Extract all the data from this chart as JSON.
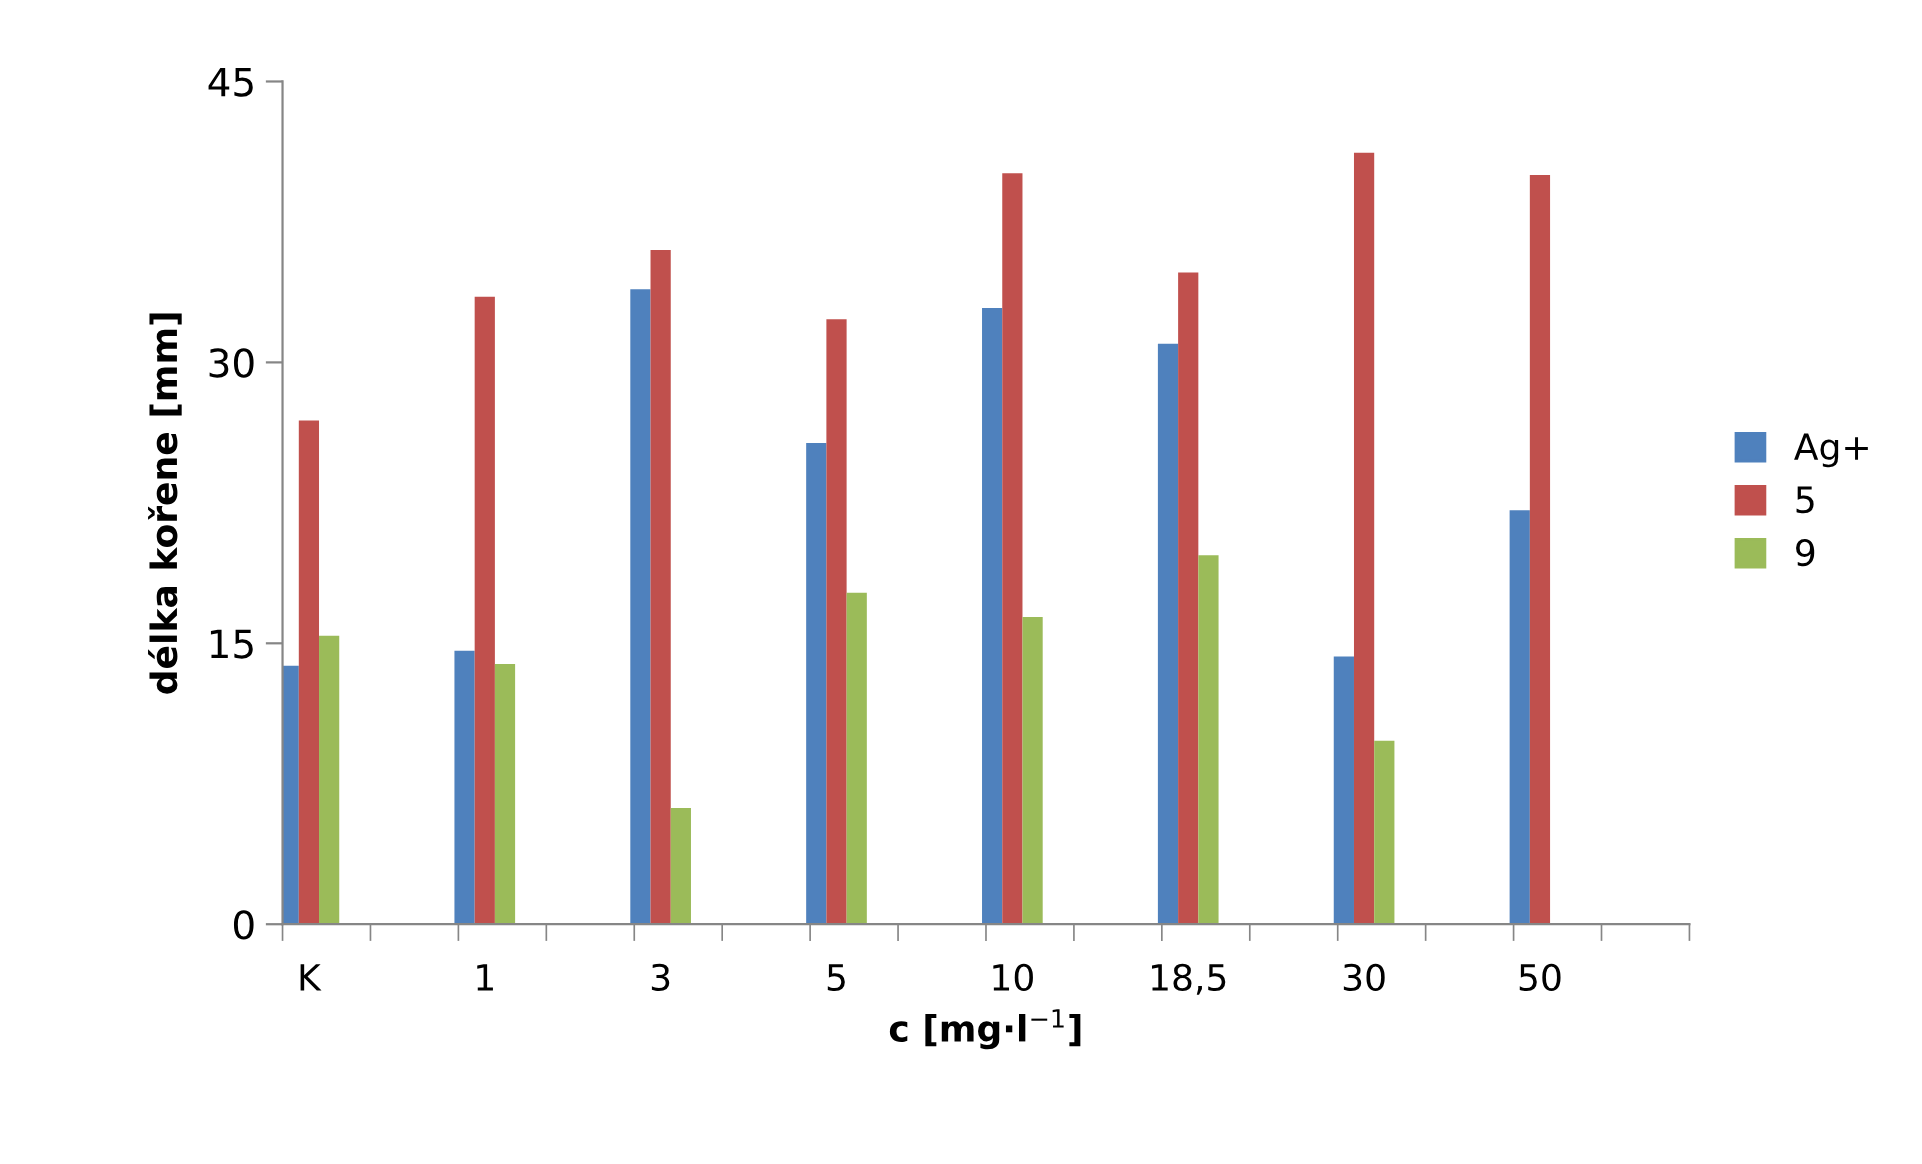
{
  "chart_data": {
    "type": "bar",
    "xlabel": "c [mg·l$^{−1}$]",
    "ylabel": "délka kořene [mm]",
    "categories": [
      "K",
      "1",
      "3",
      "5",
      "10",
      "18,5",
      "30",
      "50"
    ],
    "series": [
      {
        "name": "Ag+",
        "color": "#4f81bd",
        "values": [
          13.8,
          14.6,
          33.9,
          25.7,
          32.9,
          31.0,
          14.3,
          22.1
        ]
      },
      {
        "name": "5",
        "color": "#c0504d",
        "values": [
          26.9,
          33.5,
          36.0,
          32.3,
          40.1,
          34.8,
          41.2,
          40.0
        ]
      },
      {
        "name": "9",
        "color": "#9bbb59",
        "values": [
          15.4,
          13.9,
          6.2,
          17.7,
          16.4,
          19.7,
          9.8,
          null
        ]
      }
    ],
    "ylim": [
      0,
      45
    ],
    "yticks": [
      0,
      15,
      30,
      45
    ],
    "grid": false,
    "legend": "right"
  }
}
